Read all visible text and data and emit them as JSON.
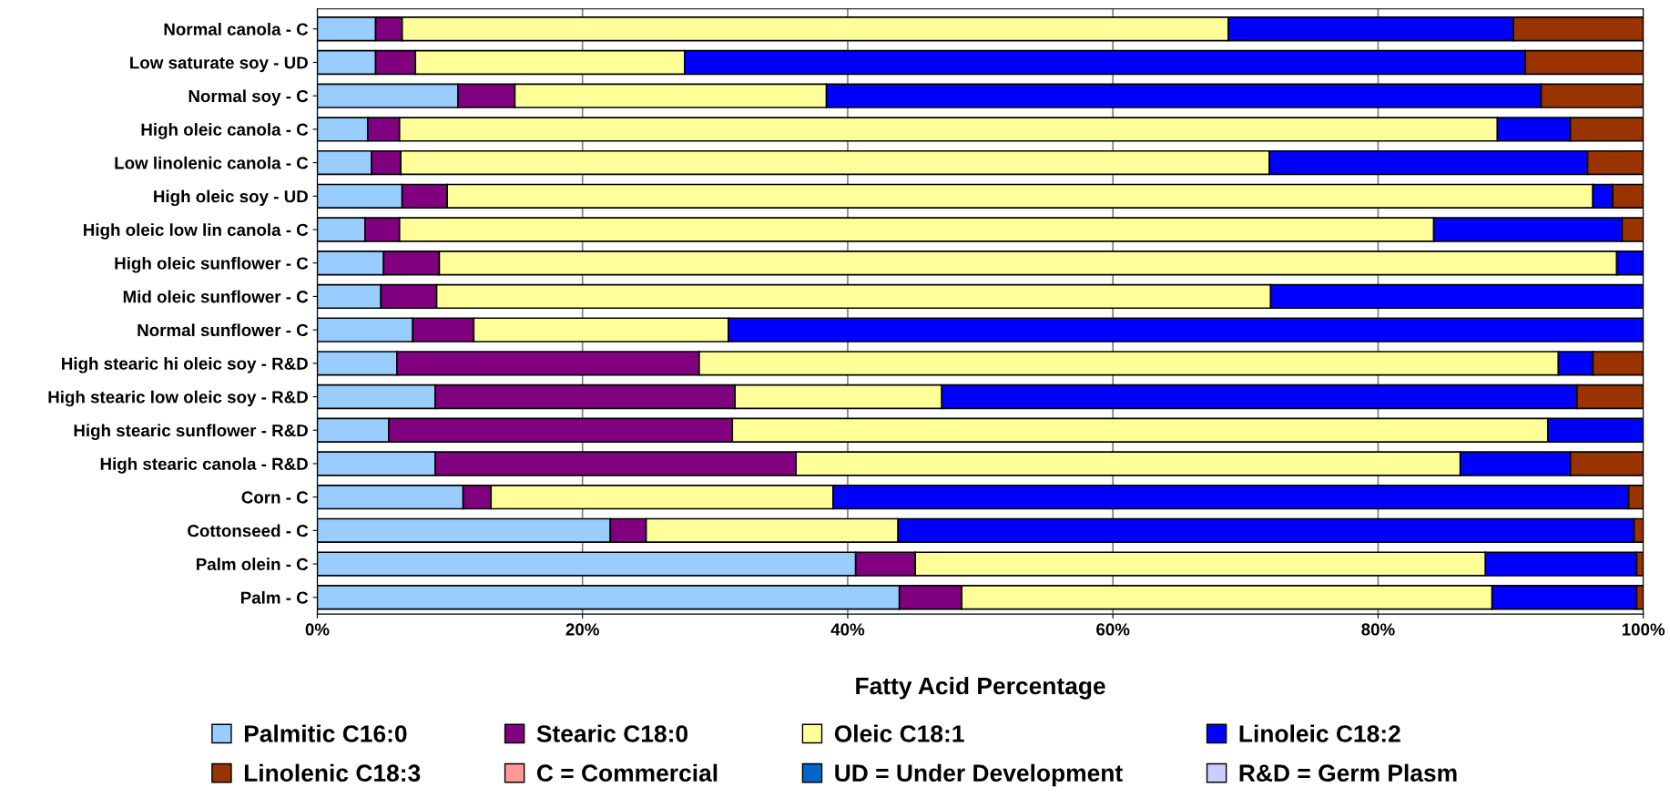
{
  "chart_data": {
    "type": "bar",
    "orientation": "horizontal",
    "stacked": true,
    "xlabel": "Fatty Acid Percentage",
    "categories": [
      "Normal canola - C",
      "Low saturate soy - UD",
      "Normal soy - C",
      "High oleic canola - C",
      "Low linolenic canola - C",
      "High oleic soy - UD",
      "High oleic low lin canola - C",
      "High oleic sunflower - C",
      "Mid oleic sunflower - C",
      "Normal sunflower - C",
      "High stearic hi oleic soy - R&D",
      "High stearic low oleic soy - R&D",
      "High stearic sunflower - R&D",
      "High stearic canola - R&D",
      "Corn - C",
      "Cottonseed - C",
      "Palm olein - C",
      "Palm - C"
    ],
    "series": [
      {
        "name": "Palmitic C16:0",
        "color": "#99ccff",
        "values": [
          4.4,
          4.4,
          10.6,
          3.8,
          4.1,
          6.4,
          3.6,
          5.0,
          4.8,
          7.2,
          6.0,
          8.9,
          5.4,
          8.9,
          11.0,
          22.1,
          40.6,
          43.9
        ]
      },
      {
        "name": "Stearic C18:0",
        "color": "#800080",
        "values": [
          2.0,
          3.0,
          4.3,
          2.4,
          2.2,
          3.4,
          2.6,
          4.2,
          4.2,
          4.6,
          22.8,
          22.6,
          25.9,
          27.2,
          2.1,
          2.7,
          4.5,
          4.7
        ]
      },
      {
        "name": "Oleic C18:1",
        "color": "#ffff99",
        "values": [
          62.3,
          20.3,
          23.5,
          82.8,
          65.5,
          86.4,
          78.0,
          88.8,
          62.9,
          19.2,
          64.8,
          15.6,
          61.5,
          50.1,
          25.8,
          19.0,
          43.0,
          40.0
        ]
      },
      {
        "name": "Linoleic C18:2",
        "color": "#0000ff",
        "values": [
          21.5,
          63.4,
          53.9,
          5.5,
          24.0,
          1.5,
          14.2,
          2.0,
          28.1,
          69.0,
          2.6,
          47.9,
          7.2,
          8.3,
          60.0,
          55.5,
          11.4,
          10.9
        ]
      },
      {
        "name": "Linolenic C18:3",
        "color": "#993300",
        "values": [
          9.8,
          8.9,
          7.7,
          5.5,
          4.2,
          2.3,
          1.6,
          0,
          0,
          0,
          3.8,
          5.0,
          0,
          5.5,
          1.1,
          0.7,
          0.5,
          0.5
        ]
      },
      {
        "name": "C = Commercial",
        "color": "#ff9999",
        "values": [
          null,
          null,
          null,
          null,
          null,
          null,
          null,
          null,
          null,
          null,
          null,
          null,
          null,
          null,
          null,
          null,
          null,
          null
        ]
      },
      {
        "name": "UD = Under Development",
        "color": "#0066cc",
        "values": [
          null,
          null,
          null,
          null,
          null,
          null,
          null,
          null,
          null,
          null,
          null,
          null,
          null,
          null,
          null,
          null,
          null,
          null
        ]
      },
      {
        "name": "R&D = Germ Plasm",
        "color": "#ccccff",
        "values": [
          null,
          null,
          null,
          null,
          null,
          null,
          null,
          null,
          null,
          null,
          null,
          null,
          null,
          null,
          null,
          null,
          null,
          null
        ]
      }
    ],
    "xlim": [
      0,
      100
    ],
    "xticks": [
      {
        "value": 0,
        "label": "0%"
      },
      {
        "value": 20,
        "label": "20%"
      },
      {
        "value": 40,
        "label": "40%"
      },
      {
        "value": 60,
        "label": "60%"
      },
      {
        "value": 80,
        "label": "80%"
      },
      {
        "value": 100,
        "label": "100%"
      }
    ],
    "grid": "x",
    "legend": "bottom"
  }
}
